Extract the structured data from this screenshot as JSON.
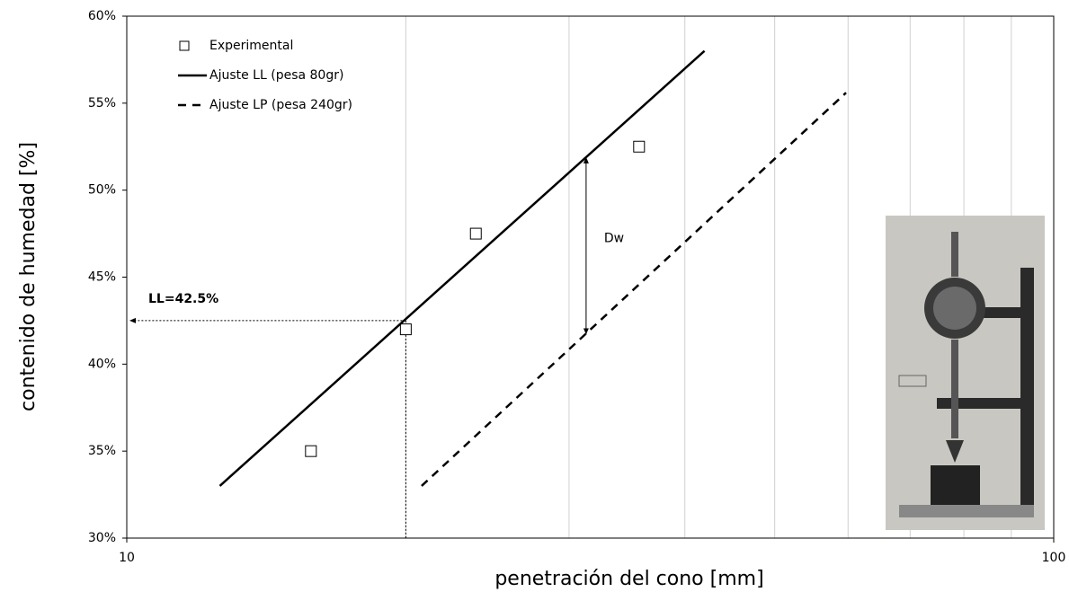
{
  "chart_data": {
    "type": "scatter",
    "x_label": "penetración del cono [mm]",
    "y_label": "contenido de humedad [%]",
    "xscale": "log",
    "xlim": [
      10,
      100
    ],
    "xticks": [
      10,
      100
    ],
    "x_minor_gridlines": [
      20,
      30,
      40,
      50,
      60,
      70,
      80,
      90
    ],
    "ylim": [
      30,
      60
    ],
    "yticks": [
      {
        "value": 30,
        "label": "30%"
      },
      {
        "value": 35,
        "label": "35%"
      },
      {
        "value": 40,
        "label": "40%"
      },
      {
        "value": 45,
        "label": "45%"
      },
      {
        "value": 50,
        "label": "50%"
      },
      {
        "value": 55,
        "label": "55%"
      },
      {
        "value": 60,
        "label": "60%"
      }
    ],
    "grid": true,
    "legend": "top-left",
    "series": [
      {
        "name": "Experimental",
        "color": "#000000",
        "mode": "markers",
        "x": [
          15.8,
          20,
          23.8,
          35.7
        ],
        "y": [
          35,
          42,
          47.5,
          52.5
        ]
      },
      {
        "name": "Ajuste LL (pesa 80gr)",
        "color": "#000000",
        "mode": "line",
        "dash": false,
        "x": [
          12.6,
          42
        ],
        "y": [
          33,
          58
        ]
      },
      {
        "name": "Ajuste LP (pesa 240gr)",
        "color": "#000000",
        "mode": "line",
        "dash": true,
        "x": [
          20.8,
          59.7
        ],
        "y": [
          33,
          55.6
        ]
      }
    ],
    "annotations": [
      {
        "text": "LL=42.5%",
        "x": 20,
        "y": 42.5
      },
      {
        "text": "Dw",
        "x": 31.3,
        "y_from": 41.7,
        "y_to": 51.9
      }
    ]
  }
}
